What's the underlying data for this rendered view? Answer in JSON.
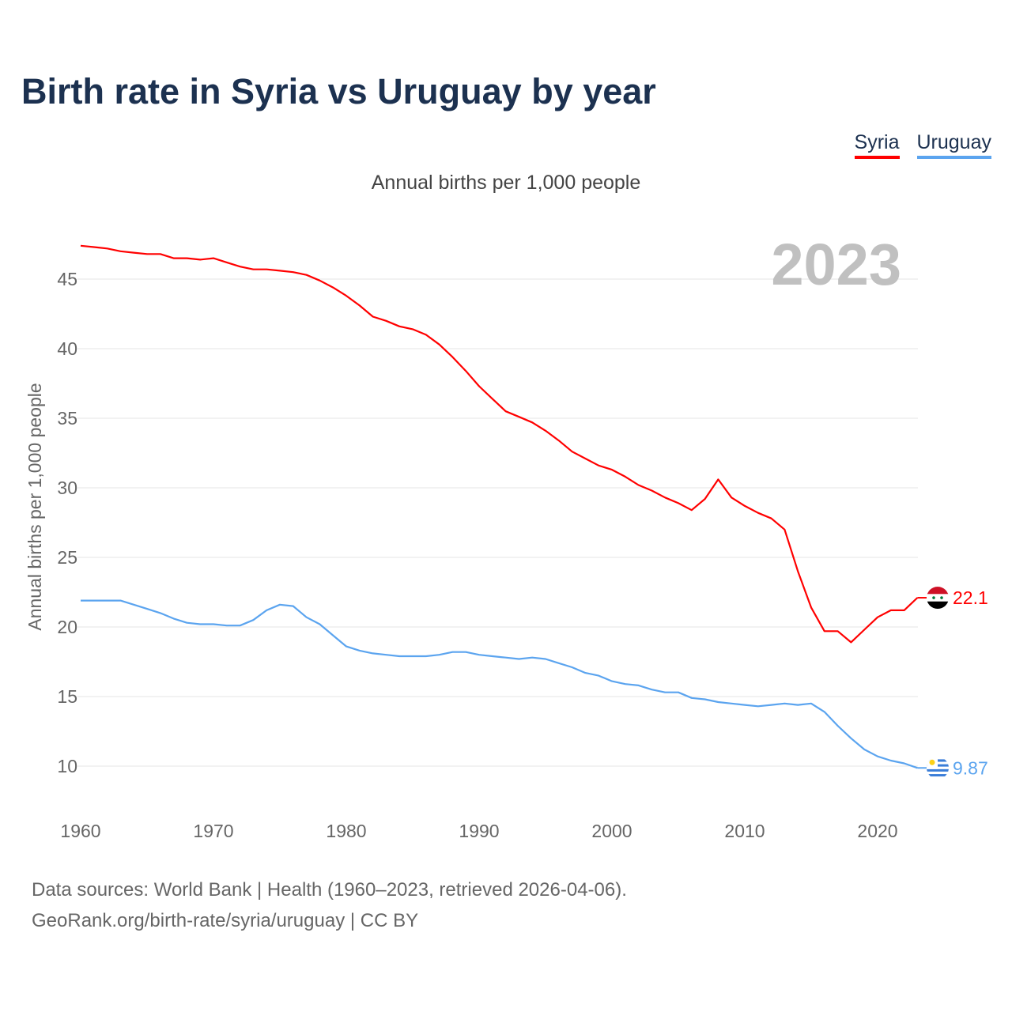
{
  "title": "Birth rate in Syria vs Uruguay by year",
  "subtitle": "Annual births per 1,000 people",
  "footer": {
    "line1": "Data sources: World Bank | Health (1960–2023, retrieved 2026-04-06).",
    "line2": "GeoRank.org/birth-rate/syria/uruguay | CC BY"
  },
  "chart_data": {
    "type": "line",
    "title": "Birth rate in Syria vs Uruguay by year",
    "xlabel": "",
    "ylabel": "Annual births per 1,000 people",
    "year_label": "2023",
    "xlim": [
      1960,
      2023
    ],
    "ylim": [
      7,
      48
    ],
    "x_ticks": [
      1960,
      1970,
      1980,
      1990,
      2000,
      2010,
      2020
    ],
    "y_ticks": [
      10,
      15,
      20,
      25,
      30,
      35,
      40,
      45
    ],
    "legend_position": "top-right",
    "x_start": 1960,
    "series": [
      {
        "name": "Syria",
        "color": "#ff0000",
        "end_label": "22.1",
        "values": [
          47.4,
          47.3,
          47.2,
          47.0,
          46.9,
          46.8,
          46.8,
          46.5,
          46.5,
          46.4,
          46.5,
          46.2,
          45.9,
          45.7,
          45.7,
          45.6,
          45.5,
          45.3,
          44.9,
          44.4,
          43.8,
          43.1,
          42.3,
          42.0,
          41.6,
          41.4,
          41.0,
          40.3,
          39.4,
          38.4,
          37.3,
          36.4,
          35.5,
          35.1,
          34.7,
          34.1,
          33.4,
          32.6,
          32.1,
          31.6,
          31.3,
          30.8,
          30.2,
          29.8,
          29.3,
          28.9,
          28.4,
          29.2,
          30.6,
          29.3,
          28.7,
          28.2,
          27.8,
          27.0,
          24.0,
          21.4,
          19.7,
          19.7,
          18.9,
          19.8,
          20.7,
          21.2,
          21.2,
          22.1
        ]
      },
      {
        "name": "Uruguay",
        "color": "#5ba4ef",
        "end_label": "9.87",
        "values": [
          21.9,
          21.9,
          21.9,
          21.9,
          21.6,
          21.3,
          21.0,
          20.6,
          20.3,
          20.2,
          20.2,
          20.1,
          20.1,
          20.5,
          21.2,
          21.6,
          21.5,
          20.7,
          20.2,
          19.4,
          18.6,
          18.3,
          18.1,
          18.0,
          17.9,
          17.9,
          17.9,
          18.0,
          18.2,
          18.2,
          18.0,
          17.9,
          17.8,
          17.7,
          17.8,
          17.7,
          17.4,
          17.1,
          16.7,
          16.5,
          16.1,
          15.9,
          15.8,
          15.5,
          15.3,
          15.3,
          14.9,
          14.8,
          14.6,
          14.5,
          14.4,
          14.3,
          14.4,
          14.5,
          14.4,
          14.5,
          13.9,
          12.9,
          12.0,
          11.2,
          10.7,
          10.4,
          10.2,
          9.87
        ]
      }
    ]
  }
}
